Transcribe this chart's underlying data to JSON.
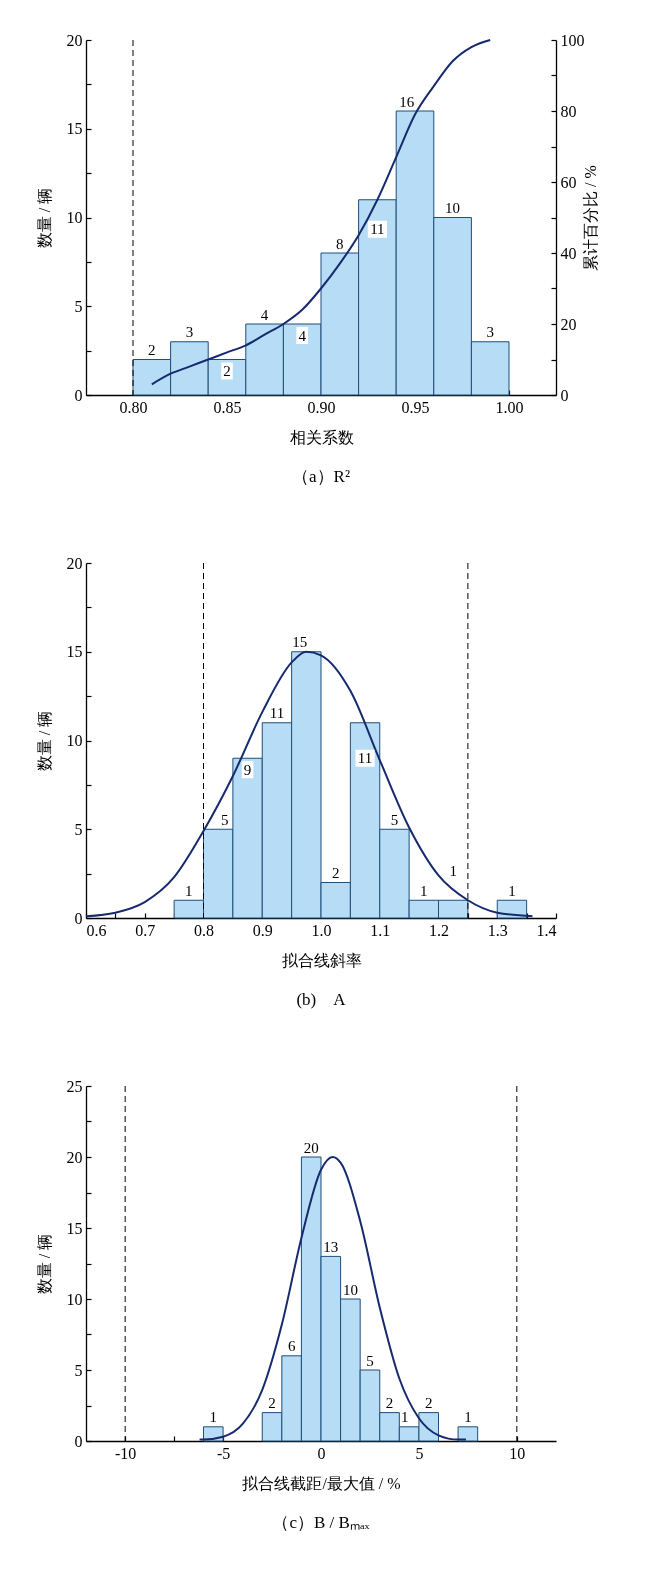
{
  "chart_data": [
    {
      "type": "histogram",
      "title": "（a）R²",
      "xlabel": "相关系数",
      "ylabel": "数量 / 辆",
      "y2label": "累计百分比 / %",
      "bins": [
        0.8,
        0.82,
        0.84,
        0.86,
        0.88,
        0.9,
        0.92,
        0.94,
        0.96,
        0.98,
        1.0
      ],
      "series": [
        {
          "color": "#b6ddf5",
          "values": [
            2,
            3,
            2,
            4,
            4,
            8,
            11,
            16,
            10,
            3
          ],
          "value_labels": [
            "2",
            "3",
            "2",
            "4",
            "4",
            "8",
            "11",
            "16",
            "10",
            "3"
          ]
        },
        {
          "type": "line",
          "axis": "y2",
          "color": "#172a6e",
          "x": [
            0.81,
            0.82,
            0.83,
            0.84,
            0.85,
            0.86,
            0.87,
            0.88,
            0.89,
            0.9,
            0.91,
            0.92,
            0.93,
            0.94,
            0.95,
            0.96,
            0.97,
            0.98,
            0.99
          ],
          "values": [
            3,
            6,
            8,
            10,
            12,
            14,
            17,
            20,
            24,
            30,
            37,
            45,
            55,
            67,
            79,
            87,
            94,
            98,
            100
          ]
        }
      ],
      "xlim": [
        0.775,
        1.025
      ],
      "xticks": [
        {
          "value": 0.8,
          "label": "0.80"
        },
        {
          "value": 0.825,
          "label": null
        },
        {
          "value": 0.85,
          "label": "0.85"
        },
        {
          "value": 0.875,
          "label": null
        },
        {
          "value": 0.9,
          "label": "0.90"
        },
        {
          "value": 0.925,
          "label": null
        },
        {
          "value": 0.95,
          "label": "0.95"
        },
        {
          "value": 0.975,
          "label": null
        },
        {
          "value": 1.0,
          "label": "1.00"
        }
      ],
      "ylim": [
        0,
        20
      ],
      "yticks": [
        0,
        {
          "value": 2.5,
          "label": null
        },
        5,
        {
          "value": 7.5,
          "label": null
        },
        10,
        {
          "value": 12.5,
          "label": null
        },
        15,
        {
          "value": 17.5,
          "label": null
        },
        20
      ],
      "y2lim": [
        0,
        100
      ],
      "y2ticks": [
        0,
        {
          "value": 10,
          "label": null
        },
        20,
        {
          "value": 30,
          "label": null
        },
        40,
        {
          "value": 50,
          "label": null
        },
        60,
        {
          "value": 70,
          "label": null
        },
        80,
        {
          "value": 90,
          "label": null
        },
        100
      ],
      "ref_lines": [
        {
          "axis": "x",
          "value": 0.8,
          "line_style": "dashed",
          "color": "#000000"
        }
      ],
      "grid": false
    },
    {
      "type": "histogram",
      "title": "(b)　A",
      "xlabel": "拟合线斜率",
      "ylabel": "数量 / 辆",
      "bins": [
        0.75,
        0.8,
        0.85,
        0.9,
        0.95,
        1.0,
        1.05,
        1.1,
        1.15,
        1.2,
        1.25,
        1.3,
        1.35
      ],
      "series": [
        {
          "color": "#b6ddf5",
          "values": [
            1,
            5,
            9,
            11,
            15,
            2,
            11,
            5,
            1,
            1,
            0,
            1
          ],
          "value_labels": [
            "1",
            "5",
            "9",
            "11",
            "15",
            "2",
            "11",
            "5",
            "1",
            "1",
            null,
            "1"
          ]
        },
        {
          "type": "line",
          "color": "#172a6e",
          "x": [
            0.6,
            0.65,
            0.7,
            0.75,
            0.8,
            0.85,
            0.9,
            0.95,
            0.975,
            1.0,
            1.05,
            1.1,
            1.15,
            1.2,
            1.25,
            1.3,
            1.36
          ],
          "values": [
            0.1,
            0.3,
            0.9,
            2.3,
            4.9,
            8.0,
            11.6,
            14.4,
            15,
            14.8,
            12.8,
            8.9,
            5.1,
            2.4,
            1.0,
            0.3,
            0.1
          ]
        }
      ],
      "xlim": [
        0.6,
        1.4
      ],
      "xticks": [
        0.6,
        {
          "value": 0.65,
          "label": null
        },
        0.7,
        {
          "value": 0.75,
          "label": null
        },
        0.8,
        {
          "value": 0.85,
          "label": null
        },
        0.9,
        {
          "value": 0.95,
          "label": null
        },
        {
          "value": 1,
          "label": "1.0"
        },
        {
          "value": 1.05,
          "label": null
        },
        1.1,
        {
          "value": 1.15,
          "label": null
        },
        1.2,
        {
          "value": 1.25,
          "label": null
        },
        1.3,
        {
          "value": 1.35,
          "label": null
        },
        1.4
      ],
      "ylim": [
        0,
        20
      ],
      "yticks": [
        0,
        {
          "value": 2.5,
          "label": null
        },
        5,
        {
          "value": 7.5,
          "label": null
        },
        10,
        {
          "value": 12.5,
          "label": null
        },
        15,
        {
          "value": 17.5,
          "label": null
        },
        20
      ],
      "ref_lines": [
        {
          "axis": "x",
          "value": 0.8,
          "line_style": "dashed",
          "color": "#000000"
        },
        {
          "axis": "x",
          "value": 1.25,
          "line_style": "dashed",
          "color": "#000000"
        }
      ],
      "grid": false
    },
    {
      "type": "histogram",
      "title": "（c）B / Bₘₐₓ",
      "xlabel": "拟合线截距/最大值 / %",
      "ylabel": "数量 / 辆",
      "bins": [
        -6,
        -5,
        -4,
        -3,
        -2,
        -1,
        0,
        1,
        2,
        3,
        4,
        5,
        6,
        7,
        8
      ],
      "series": [
        {
          "color": "#b6ddf5",
          "values": [
            1,
            0,
            0,
            2,
            6,
            20,
            13,
            10,
            5,
            2,
            1,
            2,
            0,
            1
          ],
          "value_labels": [
            "1",
            null,
            null,
            "2",
            "6",
            "20",
            "13",
            "10",
            "5",
            "2",
            "1",
            "2",
            null,
            "1"
          ]
        },
        {
          "type": "line",
          "color": "#172a6e",
          "x": [
            -6.2,
            -6,
            -5,
            -4,
            -3,
            -2,
            -1,
            0,
            0.6,
            1,
            2,
            3,
            4,
            5,
            6,
            7,
            7.4
          ],
          "values": [
            0.1,
            0.1,
            0.3,
            1.2,
            3.6,
            8.2,
            14.3,
            19.1,
            20,
            19.6,
            15.5,
            9.4,
            4.4,
            1.6,
            0.4,
            0.1,
            0.1
          ]
        }
      ],
      "xlim": [
        -12,
        12
      ],
      "xticks": [
        -10,
        {
          "value": -7.5,
          "label": null
        },
        -5,
        {
          "value": -2.5,
          "label": null
        },
        0,
        {
          "value": 2.5,
          "label": null
        },
        5,
        {
          "value": 7.5,
          "label": null
        },
        10
      ],
      "ylim": [
        0,
        25
      ],
      "yticks": [
        0,
        {
          "value": 2.5,
          "label": null
        },
        5,
        {
          "value": 7.5,
          "label": null
        },
        10,
        {
          "value": 12.5,
          "label": null
        },
        15,
        {
          "value": 17.5,
          "label": null
        },
        20,
        {
          "value": 22.5,
          "label": null
        },
        25
      ],
      "ref_lines": [
        {
          "axis": "x",
          "value": -10,
          "line_style": "dashed",
          "color": "#000000"
        },
        {
          "axis": "x",
          "value": 10,
          "line_style": "dashed",
          "color": "#000000"
        }
      ],
      "grid": false
    }
  ]
}
